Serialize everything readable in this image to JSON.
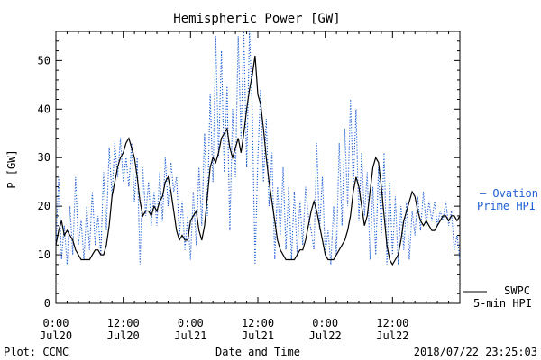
{
  "chart_data": {
    "type": "line",
    "title": "Hemispheric Power [GW]",
    "xlabel": "Date and Time",
    "ylabel": "P [GW]",
    "ylim": [
      0,
      56
    ],
    "yticks": [
      "0",
      "10",
      "20",
      "30",
      "40",
      "50"
    ],
    "xticks": [
      {
        "top": "0:00",
        "bottom": "Jul20",
        "hour": 0
      },
      {
        "top": "12:00",
        "bottom": "Jul20",
        "hour": 12
      },
      {
        "top": "0:00",
        "bottom": "Jul21",
        "hour": 24
      },
      {
        "top": "12:00",
        "bottom": "Jul21",
        "hour": 36
      },
      {
        "top": "0:00",
        "bottom": "Jul22",
        "hour": 48
      },
      {
        "top": "12:00",
        "bottom": "Jul22",
        "hour": 60
      }
    ],
    "xlim_hours": [
      0,
      72
    ],
    "series": [
      {
        "legend": [
          "— Ovation",
          "Prime HPI"
        ],
        "color": "#1f5fd6",
        "style": "dotted",
        "points": [
          [
            0,
            12
          ],
          [
            0.5,
            26
          ],
          [
            1,
            9
          ],
          [
            1.5,
            16
          ],
          [
            2,
            8
          ],
          [
            2.5,
            20
          ],
          [
            3,
            10
          ],
          [
            3.5,
            26
          ],
          [
            4,
            12
          ],
          [
            4.5,
            17
          ],
          [
            5,
            9
          ],
          [
            5.5,
            20
          ],
          [
            6,
            11
          ],
          [
            6.5,
            23
          ],
          [
            7,
            12
          ],
          [
            7.5,
            18
          ],
          [
            8,
            10
          ],
          [
            8.5,
            27
          ],
          [
            9,
            15
          ],
          [
            9.5,
            32
          ],
          [
            10,
            22
          ],
          [
            10.5,
            33
          ],
          [
            11,
            26
          ],
          [
            11.5,
            34
          ],
          [
            12,
            25
          ],
          [
            12.5,
            30
          ],
          [
            13,
            24
          ],
          [
            13.5,
            33
          ],
          [
            14,
            21
          ],
          [
            14.5,
            30
          ],
          [
            15,
            8
          ],
          [
            15.5,
            28
          ],
          [
            16,
            18
          ],
          [
            16.5,
            25
          ],
          [
            17,
            16
          ],
          [
            17.5,
            23
          ],
          [
            18,
            16
          ],
          [
            18.5,
            27
          ],
          [
            19,
            17
          ],
          [
            19.5,
            30
          ],
          [
            20,
            20
          ],
          [
            20.5,
            29
          ],
          [
            21,
            23
          ],
          [
            21.5,
            26
          ],
          [
            22,
            14
          ],
          [
            22.5,
            21
          ],
          [
            23,
            11
          ],
          [
            23.5,
            18
          ],
          [
            24,
            9
          ],
          [
            24.5,
            23
          ],
          [
            25,
            12
          ],
          [
            25.5,
            28
          ],
          [
            26,
            16
          ],
          [
            26.5,
            35
          ],
          [
            27,
            18
          ],
          [
            27.5,
            43
          ],
          [
            28,
            25
          ],
          [
            28.5,
            55
          ],
          [
            29,
            30
          ],
          [
            29.5,
            52
          ],
          [
            30,
            27
          ],
          [
            30.5,
            45
          ],
          [
            31,
            15
          ],
          [
            31.5,
            40
          ],
          [
            32,
            26
          ],
          [
            32.5,
            55
          ],
          [
            33,
            34
          ],
          [
            33.5,
            56
          ],
          [
            34,
            28
          ],
          [
            34.5,
            56
          ],
          [
            35,
            40
          ],
          [
            35.5,
            8
          ],
          [
            36,
            30
          ],
          [
            36.5,
            44
          ],
          [
            37,
            25
          ],
          [
            37.5,
            38
          ],
          [
            38,
            20
          ],
          [
            38.5,
            31
          ],
          [
            39,
            9
          ],
          [
            39.5,
            24
          ],
          [
            40,
            14
          ],
          [
            40.5,
            28
          ],
          [
            41,
            11
          ],
          [
            41.5,
            24
          ],
          [
            42,
            9
          ],
          [
            42.5,
            23
          ],
          [
            43,
            10
          ],
          [
            43.5,
            21
          ],
          [
            44,
            12
          ],
          [
            44.5,
            24
          ],
          [
            45,
            18
          ],
          [
            45.5,
            15
          ],
          [
            46,
            11
          ],
          [
            46.5,
            33
          ],
          [
            47,
            15
          ],
          [
            47.5,
            26
          ],
          [
            48,
            10
          ],
          [
            48.5,
            15
          ],
          [
            49,
            8
          ],
          [
            49.5,
            20
          ],
          [
            50,
            10
          ],
          [
            50.5,
            33
          ],
          [
            51,
            16
          ],
          [
            51.5,
            36
          ],
          [
            52,
            20
          ],
          [
            52.5,
            42
          ],
          [
            53,
            24
          ],
          [
            53.5,
            40
          ],
          [
            54,
            17
          ],
          [
            54.5,
            31
          ],
          [
            55,
            18
          ],
          [
            55.5,
            27
          ],
          [
            56,
            9
          ],
          [
            56.5,
            24
          ],
          [
            57,
            10
          ],
          [
            57.5,
            28
          ],
          [
            58,
            14
          ],
          [
            58.5,
            31
          ],
          [
            59,
            8
          ],
          [
            59.5,
            25
          ],
          [
            60,
            10
          ],
          [
            60.5,
            22
          ],
          [
            61,
            8
          ],
          [
            61.5,
            20
          ],
          [
            62,
            11
          ],
          [
            62.5,
            21
          ],
          [
            63,
            9
          ],
          [
            63.5,
            19
          ],
          [
            64,
            14
          ],
          [
            64.5,
            22
          ],
          [
            65,
            15
          ],
          [
            65.5,
            23
          ],
          [
            66,
            16
          ],
          [
            66.5,
            21
          ],
          [
            67,
            17
          ],
          [
            67.5,
            21
          ],
          [
            68,
            16
          ],
          [
            68.5,
            19
          ],
          [
            69,
            17
          ],
          [
            69.5,
            21
          ],
          [
            70,
            16
          ],
          [
            70.5,
            19
          ],
          [
            71,
            11
          ],
          [
            71.5,
            14
          ],
          [
            72,
            9
          ]
        ]
      },
      {
        "legend": [
          "SWPC",
          "5-min HPI"
        ],
        "color": "#000000",
        "style": "solid",
        "points": [
          [
            0,
            12
          ],
          [
            0.5,
            15
          ],
          [
            1,
            17
          ],
          [
            1.5,
            14
          ],
          [
            2,
            15
          ],
          [
            2.5,
            14
          ],
          [
            3,
            13
          ],
          [
            3.5,
            11
          ],
          [
            4,
            10
          ],
          [
            4.5,
            9
          ],
          [
            5,
            9
          ],
          [
            5.5,
            9
          ],
          [
            6,
            9
          ],
          [
            6.5,
            10
          ],
          [
            7,
            11
          ],
          [
            7.5,
            11
          ],
          [
            8,
            10
          ],
          [
            8.5,
            10
          ],
          [
            9,
            12
          ],
          [
            9.5,
            16
          ],
          [
            10,
            22
          ],
          [
            10.5,
            25
          ],
          [
            11,
            28
          ],
          [
            11.5,
            30
          ],
          [
            12,
            31
          ],
          [
            12.5,
            33
          ],
          [
            13,
            34
          ],
          [
            13.5,
            32
          ],
          [
            14,
            30
          ],
          [
            14.5,
            26
          ],
          [
            15,
            21
          ],
          [
            15.5,
            18
          ],
          [
            16,
            19
          ],
          [
            16.5,
            19
          ],
          [
            17,
            18
          ],
          [
            17.5,
            20
          ],
          [
            18,
            19
          ],
          [
            18.5,
            21
          ],
          [
            19,
            22
          ],
          [
            19.5,
            25
          ],
          [
            20,
            26
          ],
          [
            20.5,
            23
          ],
          [
            21,
            19
          ],
          [
            21.5,
            15
          ],
          [
            22,
            13
          ],
          [
            22.5,
            14
          ],
          [
            23,
            13
          ],
          [
            23.5,
            13
          ],
          [
            24,
            17
          ],
          [
            24.5,
            18
          ],
          [
            25,
            19
          ],
          [
            25.5,
            15
          ],
          [
            26,
            13
          ],
          [
            26.5,
            16
          ],
          [
            27,
            22
          ],
          [
            27.5,
            28
          ],
          [
            28,
            30
          ],
          [
            28.5,
            29
          ],
          [
            29,
            31
          ],
          [
            29.5,
            34
          ],
          [
            30,
            35
          ],
          [
            30.5,
            36
          ],
          [
            31,
            32
          ],
          [
            31.5,
            30
          ],
          [
            32,
            32
          ],
          [
            32.5,
            34
          ],
          [
            33,
            31
          ],
          [
            33.5,
            35
          ],
          [
            34,
            40
          ],
          [
            34.5,
            44
          ],
          [
            35,
            47
          ],
          [
            35.5,
            51
          ],
          [
            36,
            43
          ],
          [
            36.5,
            41
          ],
          [
            37,
            36
          ],
          [
            37.5,
            30
          ],
          [
            38,
            25
          ],
          [
            38.5,
            21
          ],
          [
            39,
            17
          ],
          [
            39.5,
            13
          ],
          [
            40,
            11
          ],
          [
            40.5,
            10
          ],
          [
            41,
            9
          ],
          [
            41.5,
            9
          ],
          [
            42,
            9
          ],
          [
            42.5,
            9
          ],
          [
            43,
            10
          ],
          [
            43.5,
            11
          ],
          [
            44,
            11
          ],
          [
            44.5,
            13
          ],
          [
            45,
            16
          ],
          [
            45.5,
            19
          ],
          [
            46,
            21
          ],
          [
            46.5,
            19
          ],
          [
            47,
            16
          ],
          [
            47.5,
            13
          ],
          [
            48,
            10
          ],
          [
            48.5,
            9
          ],
          [
            49,
            9
          ],
          [
            49.5,
            9
          ],
          [
            50,
            10
          ],
          [
            50.5,
            11
          ],
          [
            51,
            12
          ],
          [
            51.5,
            13
          ],
          [
            52,
            15
          ],
          [
            52.5,
            18
          ],
          [
            53,
            23
          ],
          [
            53.5,
            26
          ],
          [
            54,
            24
          ],
          [
            54.5,
            20
          ],
          [
            55,
            16
          ],
          [
            55.5,
            18
          ],
          [
            56,
            23
          ],
          [
            56.5,
            28
          ],
          [
            57,
            30
          ],
          [
            57.5,
            29
          ],
          [
            58,
            24
          ],
          [
            58.5,
            18
          ],
          [
            59,
            12
          ],
          [
            59.5,
            9
          ],
          [
            60,
            8
          ],
          [
            60.5,
            9
          ],
          [
            61,
            10
          ],
          [
            61.5,
            13
          ],
          [
            62,
            17
          ],
          [
            62.5,
            19
          ],
          [
            63,
            21
          ],
          [
            63.5,
            23
          ],
          [
            64,
            22
          ],
          [
            64.5,
            19
          ],
          [
            65,
            17
          ],
          [
            65.5,
            16
          ],
          [
            66,
            17
          ],
          [
            66.5,
            16
          ],
          [
            67,
            15
          ],
          [
            67.5,
            15
          ],
          [
            68,
            16
          ],
          [
            68.5,
            17
          ],
          [
            69,
            18
          ],
          [
            69.5,
            18
          ],
          [
            70,
            17
          ],
          [
            70.5,
            18
          ],
          [
            71,
            18
          ],
          [
            71.5,
            17
          ],
          [
            72,
            18
          ]
        ]
      }
    ],
    "grid": false
  },
  "footer": {
    "plot_credit": "Plot: CCMC",
    "timestamp": "2018/07/22 23:25:03"
  },
  "colors": {
    "ovation": "#1f5fd6",
    "swpc": "#000000"
  }
}
